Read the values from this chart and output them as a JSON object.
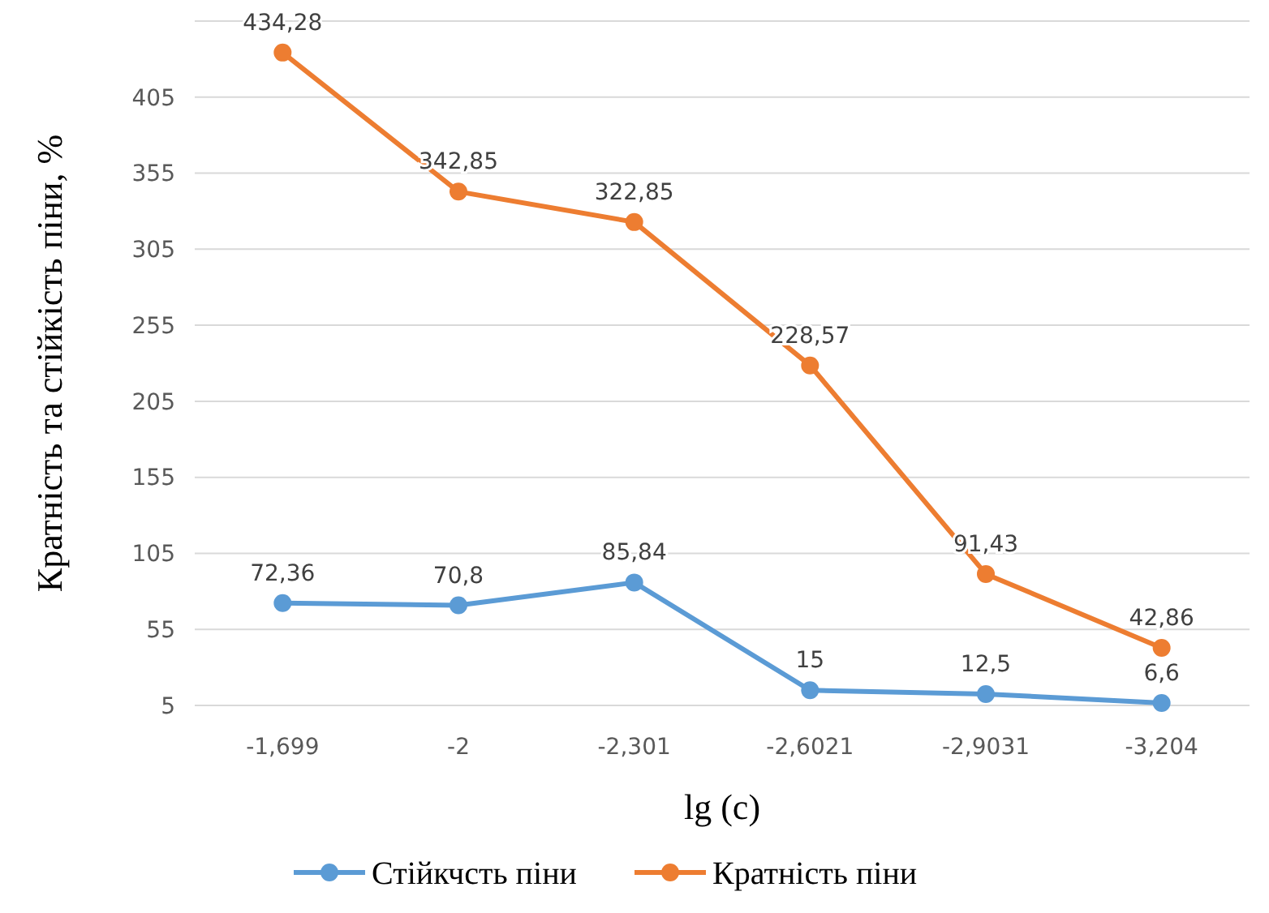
{
  "chart_data": {
    "type": "line",
    "xlabel": "lg (c)",
    "ylabel": "Кратність та стійкість піни, %",
    "categories": [
      "-1,699",
      "-2",
      "-2,301",
      "-2,6021",
      "-2,9031",
      "-3,204"
    ],
    "series": [
      {
        "name": "Стійкчсть піни",
        "color": "#5b9bd5",
        "values": [
          72.36,
          70.8,
          85.84,
          15,
          12.5,
          6.6
        ],
        "value_labels": [
          "72,36",
          "70,8",
          "85,84",
          "15",
          "12,5",
          "6,6"
        ]
      },
      {
        "name": "Кратність піни",
        "color": "#ed7d31",
        "values": [
          434.28,
          342.85,
          322.85,
          228.57,
          91.43,
          42.86
        ],
        "value_labels": [
          "434,28",
          "342,85",
          "322,85",
          "228,57",
          "91,43",
          "42,86"
        ]
      }
    ],
    "ylim": [
      5,
      455
    ],
    "yticks": [
      5,
      55,
      105,
      155,
      205,
      255,
      305,
      355,
      405,
      {
        "value": 455,
        "label": null
      }
    ],
    "grid": "y",
    "legend": "bottom",
    "marker": "circle",
    "line_style": "solid"
  }
}
